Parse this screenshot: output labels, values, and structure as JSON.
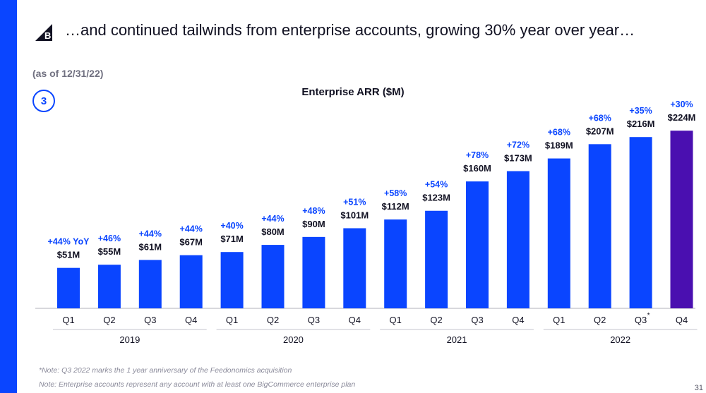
{
  "slide": {
    "headline": "…and continued tailwinds from enterprise accounts, growing 30% year over year…",
    "as_of": "(as of 12/31/22)",
    "badge": "3",
    "notes": [
      "*Note: Q3 2022 marks the 1 year anniversary of the Feedonomics acquisition",
      "Note: Enterprise accounts represent any account with at least one BigCommerce enterprise plan"
    ],
    "page_number": "31"
  },
  "colors": {
    "accent": "#0a45ff",
    "highlight": "#4a0fb0",
    "growth_text": "#0a45ff"
  },
  "chart_data": {
    "type": "bar",
    "title": "Enterprise ARR ($M)",
    "xlabel": "",
    "ylabel": "",
    "ylim": [
      0,
      240
    ],
    "categories": [
      "Q1",
      "Q2",
      "Q3",
      "Q4",
      "Q1",
      "Q2",
      "Q3",
      "Q4",
      "Q1",
      "Q2",
      "Q3",
      "Q4",
      "Q1",
      "Q2",
      "Q3",
      "Q4"
    ],
    "years": [
      "2019",
      "2020",
      "2021",
      "2022"
    ],
    "values": [
      51,
      55,
      61,
      67,
      71,
      80,
      90,
      101,
      112,
      123,
      160,
      173,
      189,
      207,
      216,
      224
    ],
    "value_labels": [
      "$51M",
      "$55M",
      "$61M",
      "$67M",
      "$71M",
      "$80M",
      "$90M",
      "$101M",
      "$112M",
      "$123M",
      "$160M",
      "$173M",
      "$189M",
      "$207M",
      "$216M",
      "$224M"
    ],
    "growth_labels": [
      "+44% YoY",
      "+46%",
      "+44%",
      "+44%",
      "+40%",
      "+44%",
      "+48%",
      "+51%",
      "+58%",
      "+54%",
      "+78%",
      "+72%",
      "+68%",
      "+68%",
      "+35%",
      "+30%"
    ],
    "footnote_marker": {
      "index": 14,
      "symbol": "*"
    },
    "highlight_index": 15
  }
}
